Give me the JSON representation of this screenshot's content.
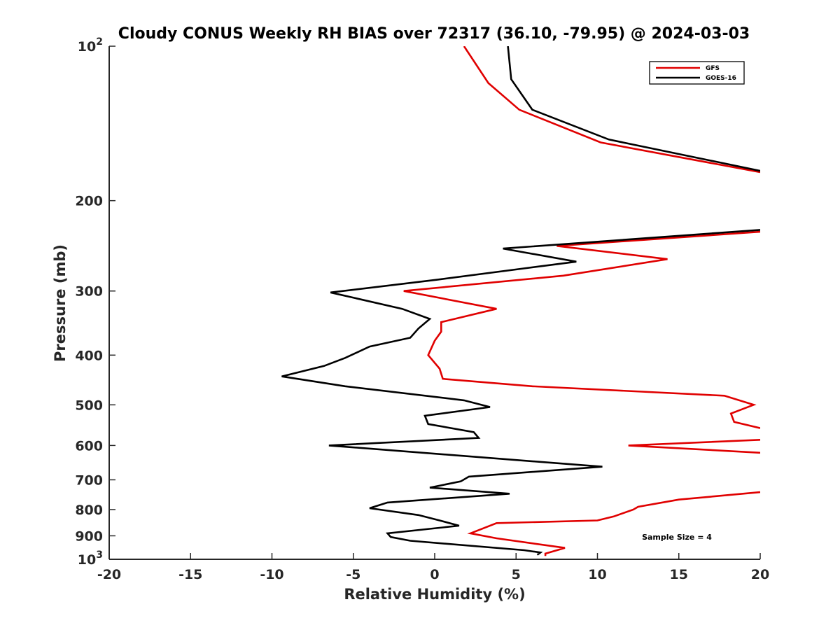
{
  "chart_data": {
    "type": "line",
    "title": "Cloudy CONUS Weekly RH BIAS over 72317 (36.10, -79.95) @ 2024-03-03",
    "xlabel": "Relative Humidity (%)",
    "ylabel": "Pressure (mb)",
    "xlim": [
      -20,
      20
    ],
    "ylim": [
      1000,
      100
    ],
    "yscale": "log",
    "y_reversed": true,
    "x_ticks": [
      -20,
      -15,
      -10,
      -5,
      0,
      5,
      10,
      15,
      20
    ],
    "x_tick_labels": [
      "-20",
      "-15",
      "-10",
      "-5",
      "0",
      "5",
      "10",
      "15",
      "20"
    ],
    "y_ticks": [
      {
        "value": 100,
        "base": "10",
        "exp": "2"
      },
      {
        "value": 200,
        "label": "200"
      },
      {
        "value": 300,
        "label": "300"
      },
      {
        "value": 400,
        "label": "400"
      },
      {
        "value": 500,
        "label": "500"
      },
      {
        "value": 600,
        "label": "600"
      },
      {
        "value": 700,
        "label": "700"
      },
      {
        "value": 800,
        "label": "800"
      },
      {
        "value": 900,
        "label": "900"
      },
      {
        "value": 1000,
        "base": "10",
        "exp": "3"
      }
    ],
    "grid": false,
    "legend_position": "top-right",
    "annotation": "Sample Size = 4",
    "series": [
      {
        "name": "GFS",
        "color": "#e00000",
        "points": [
          [
            6.8,
            985
          ],
          [
            6.8,
            975
          ],
          [
            8.0,
            950
          ],
          [
            3.8,
            910
          ],
          [
            2.2,
            890
          ],
          [
            3.8,
            850
          ],
          [
            10.0,
            840
          ],
          [
            11.0,
            825
          ],
          [
            12.2,
            800
          ],
          [
            12.5,
            790
          ],
          [
            15.0,
            765
          ],
          [
            20.0,
            740
          ],
          null,
          [
            20.0,
            620
          ],
          [
            11.9,
            600
          ],
          [
            20.0,
            585
          ],
          null,
          [
            20.0,
            555
          ],
          [
            18.4,
            540
          ],
          [
            18.2,
            520
          ],
          [
            19.6,
            500
          ],
          [
            17.8,
            480
          ],
          [
            6.0,
            460
          ],
          [
            0.5,
            445
          ],
          [
            0.3,
            425
          ],
          [
            -0.4,
            400
          ],
          [
            0.0,
            375
          ],
          [
            0.4,
            360
          ],
          [
            0.4,
            345
          ],
          [
            3.8,
            325
          ],
          [
            -1.9,
            300
          ],
          [
            7.9,
            280
          ],
          [
            14.3,
            260
          ],
          [
            7.5,
            245
          ],
          [
            20.0,
            230
          ],
          null,
          [
            20.0,
            176
          ],
          [
            10.2,
            154
          ],
          [
            5.2,
            133
          ],
          [
            3.3,
            118
          ],
          [
            1.8,
            100
          ]
        ]
      },
      {
        "name": "GOES-16",
        "color": "#000000",
        "points": [
          [
            6.3,
            980
          ],
          [
            6.5,
            970
          ],
          [
            5.5,
            960
          ],
          [
            -1.5,
            920
          ],
          [
            -2.7,
            905
          ],
          [
            -2.9,
            890
          ],
          [
            1.5,
            860
          ],
          [
            0.3,
            840
          ],
          [
            -1.0,
            820
          ],
          [
            -4.0,
            795
          ],
          [
            -2.9,
            775
          ],
          [
            4.6,
            745
          ],
          [
            -0.3,
            725
          ],
          [
            1.6,
            705
          ],
          [
            2.1,
            690
          ],
          [
            10.3,
            660
          ],
          [
            -6.5,
            600
          ],
          [
            2.7,
            580
          ],
          [
            2.4,
            565
          ],
          [
            -0.4,
            545
          ],
          [
            -0.6,
            525
          ],
          [
            3.4,
            505
          ],
          [
            1.8,
            490
          ],
          [
            -5.5,
            460
          ],
          [
            -9.4,
            440
          ],
          [
            -6.8,
            420
          ],
          [
            -5.5,
            405
          ],
          [
            -4.0,
            385
          ],
          [
            -1.5,
            370
          ],
          [
            -1.0,
            355
          ],
          [
            -0.3,
            340
          ],
          [
            -2.0,
            325
          ],
          [
            -6.4,
            302
          ],
          [
            0.2,
            285
          ],
          [
            8.7,
            263
          ],
          [
            4.2,
            248
          ],
          [
            20.0,
            228
          ],
          null,
          [
            20.0,
            175
          ],
          [
            10.7,
            152
          ],
          [
            6.0,
            133
          ],
          [
            4.7,
            116
          ],
          [
            4.5,
            100
          ]
        ]
      }
    ]
  }
}
